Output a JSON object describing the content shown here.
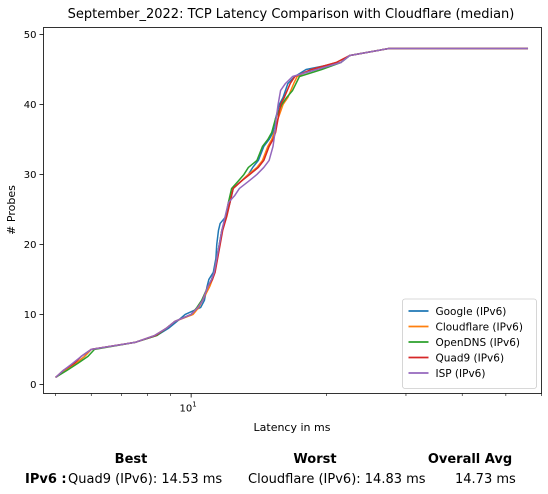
{
  "chart_data": {
    "type": "line",
    "title": "September_2022: TCP Latency Comparison with Cloudflare (median)",
    "xlabel": "Latency in ms",
    "ylabel": "# Probes",
    "xscale": "log",
    "xlim": [
      4.7,
      60
    ],
    "ylim": [
      -1.3,
      51
    ],
    "x_ticks": [
      {
        "value": 10,
        "label": "10^1"
      }
    ],
    "y_ticks": [
      0,
      10,
      20,
      30,
      40,
      50
    ],
    "grid": false,
    "legend_position": "lower-right",
    "series": [
      {
        "name": "Google (IPv6)",
        "color": "#1f77b4",
        "points": [
          [
            5.0,
            1
          ],
          [
            5.25,
            2
          ],
          [
            5.55,
            3
          ],
          [
            5.8,
            4
          ],
          [
            6.0,
            5
          ],
          [
            7.5,
            6
          ],
          [
            8.4,
            7
          ],
          [
            8.9,
            8
          ],
          [
            9.3,
            9
          ],
          [
            9.7,
            10
          ],
          [
            10.5,
            11
          ],
          [
            10.7,
            12
          ],
          [
            10.85,
            14
          ],
          [
            10.95,
            15
          ],
          [
            11.2,
            16
          ],
          [
            11.35,
            18
          ],
          [
            11.4,
            20
          ],
          [
            11.5,
            22
          ],
          [
            11.6,
            23
          ],
          [
            11.95,
            24
          ],
          [
            12.2,
            26
          ],
          [
            12.4,
            28
          ],
          [
            12.9,
            29
          ],
          [
            13.4,
            30
          ],
          [
            13.7,
            31
          ],
          [
            14.1,
            32
          ],
          [
            14.5,
            34
          ],
          [
            14.9,
            35
          ],
          [
            15.2,
            36
          ],
          [
            15.4,
            38
          ],
          [
            15.7,
            40
          ],
          [
            16.0,
            41
          ],
          [
            16.4,
            43
          ],
          [
            17.0,
            44
          ],
          [
            18.0,
            45
          ],
          [
            21.5,
            46
          ],
          [
            22.5,
            47
          ],
          [
            27.5,
            48
          ],
          [
            56.0,
            48
          ]
        ]
      },
      {
        "name": "Cloudflare (IPv6)",
        "color": "#ff7f0e",
        "points": [
          [
            5.0,
            1
          ],
          [
            5.25,
            2
          ],
          [
            5.55,
            3
          ],
          [
            5.8,
            4
          ],
          [
            6.0,
            5
          ],
          [
            7.5,
            6
          ],
          [
            8.3,
            7
          ],
          [
            8.8,
            8
          ],
          [
            9.2,
            9
          ],
          [
            10.1,
            10
          ],
          [
            10.4,
            11
          ],
          [
            10.6,
            12
          ],
          [
            11.0,
            14
          ],
          [
            11.15,
            15
          ],
          [
            11.25,
            16
          ],
          [
            11.4,
            18
          ],
          [
            11.55,
            20
          ],
          [
            11.7,
            22
          ],
          [
            11.95,
            24
          ],
          [
            12.1,
            26
          ],
          [
            12.4,
            28
          ],
          [
            12.9,
            29
          ],
          [
            13.4,
            30
          ],
          [
            14.0,
            31
          ],
          [
            14.4,
            32
          ],
          [
            14.8,
            34
          ],
          [
            15.1,
            35
          ],
          [
            15.3,
            36
          ],
          [
            15.6,
            38
          ],
          [
            15.8,
            39
          ],
          [
            16.0,
            40
          ],
          [
            16.4,
            41
          ],
          [
            16.9,
            43
          ],
          [
            17.2,
            44
          ],
          [
            18.5,
            45
          ],
          [
            21.0,
            46
          ],
          [
            22.5,
            47
          ],
          [
            27.5,
            48
          ],
          [
            56.0,
            48
          ]
        ]
      },
      {
        "name": "OpenDNS (IPv6)",
        "color": "#2ca02c",
        "points": [
          [
            5.0,
            1
          ],
          [
            5.3,
            2
          ],
          [
            5.6,
            3
          ],
          [
            5.9,
            4
          ],
          [
            6.1,
            5
          ],
          [
            7.5,
            6
          ],
          [
            8.4,
            7
          ],
          [
            8.8,
            8
          ],
          [
            9.2,
            9
          ],
          [
            10.0,
            10
          ],
          [
            10.3,
            11
          ],
          [
            10.55,
            12
          ],
          [
            10.9,
            14
          ],
          [
            11.1,
            15
          ],
          [
            11.25,
            16
          ],
          [
            11.4,
            18
          ],
          [
            11.55,
            20
          ],
          [
            11.7,
            22
          ],
          [
            11.95,
            24
          ],
          [
            12.1,
            26
          ],
          [
            12.3,
            28
          ],
          [
            12.7,
            29
          ],
          [
            13.1,
            30
          ],
          [
            13.4,
            31
          ],
          [
            14.0,
            32
          ],
          [
            14.4,
            34
          ],
          [
            14.8,
            35
          ],
          [
            15.1,
            36
          ],
          [
            15.4,
            38
          ],
          [
            15.9,
            40
          ],
          [
            16.3,
            41
          ],
          [
            16.8,
            42
          ],
          [
            17.4,
            44
          ],
          [
            19.5,
            45
          ],
          [
            21.5,
            46
          ],
          [
            22.5,
            47
          ],
          [
            27.5,
            48
          ],
          [
            56.0,
            48
          ]
        ]
      },
      {
        "name": "Quad9 (IPv6)",
        "color": "#d62728",
        "points": [
          [
            5.0,
            1
          ],
          [
            5.2,
            2
          ],
          [
            5.5,
            3
          ],
          [
            5.7,
            4
          ],
          [
            6.0,
            5
          ],
          [
            7.5,
            6
          ],
          [
            8.35,
            7
          ],
          [
            8.8,
            8
          ],
          [
            9.2,
            9
          ],
          [
            10.0,
            10
          ],
          [
            10.35,
            11
          ],
          [
            10.6,
            12
          ],
          [
            10.9,
            14
          ],
          [
            11.15,
            15
          ],
          [
            11.3,
            16
          ],
          [
            11.45,
            18
          ],
          [
            11.6,
            20
          ],
          [
            11.75,
            22
          ],
          [
            12.0,
            24
          ],
          [
            12.2,
            26
          ],
          [
            12.4,
            28
          ],
          [
            12.9,
            29
          ],
          [
            13.5,
            30
          ],
          [
            14.1,
            31
          ],
          [
            14.5,
            32
          ],
          [
            14.9,
            34
          ],
          [
            15.2,
            35
          ],
          [
            15.4,
            36
          ],
          [
            15.6,
            38
          ],
          [
            15.8,
            40
          ],
          [
            16.1,
            41
          ],
          [
            16.6,
            43
          ],
          [
            17.0,
            44
          ],
          [
            18.5,
            45
          ],
          [
            21.0,
            46
          ],
          [
            22.5,
            47
          ],
          [
            27.5,
            48
          ],
          [
            56.0,
            48
          ]
        ]
      },
      {
        "name": "ISP (IPv6)",
        "color": "#9467bd",
        "points": [
          [
            5.0,
            1
          ],
          [
            5.2,
            2
          ],
          [
            5.45,
            3
          ],
          [
            5.7,
            4
          ],
          [
            6.0,
            5
          ],
          [
            7.5,
            6
          ],
          [
            8.3,
            7
          ],
          [
            8.8,
            8
          ],
          [
            9.2,
            9
          ],
          [
            10.0,
            10
          ],
          [
            10.35,
            11
          ],
          [
            10.6,
            12
          ],
          [
            10.9,
            14
          ],
          [
            11.1,
            15
          ],
          [
            11.25,
            16
          ],
          [
            11.4,
            18
          ],
          [
            11.55,
            20
          ],
          [
            11.7,
            22
          ],
          [
            11.9,
            24
          ],
          [
            12.1,
            26
          ],
          [
            12.5,
            27
          ],
          [
            12.8,
            28
          ],
          [
            13.4,
            29
          ],
          [
            14.0,
            30
          ],
          [
            14.5,
            31
          ],
          [
            14.9,
            32
          ],
          [
            15.2,
            34
          ],
          [
            15.35,
            36
          ],
          [
            15.45,
            38
          ],
          [
            15.6,
            40
          ],
          [
            15.8,
            42
          ],
          [
            16.2,
            43
          ],
          [
            16.8,
            44
          ],
          [
            19.0,
            45
          ],
          [
            21.5,
            46
          ],
          [
            22.5,
            47
          ],
          [
            27.5,
            48
          ],
          [
            56.0,
            48
          ]
        ]
      }
    ]
  },
  "summary": {
    "row_label": "IPv6 :",
    "best_header": "Best",
    "worst_header": "Worst",
    "avg_header": "Overall Avg",
    "best_value": "Quad9 (IPv6): 14.53 ms",
    "worst_value": "Cloudflare (IPv6): 14.83 ms",
    "avg_value": "14.73 ms"
  }
}
